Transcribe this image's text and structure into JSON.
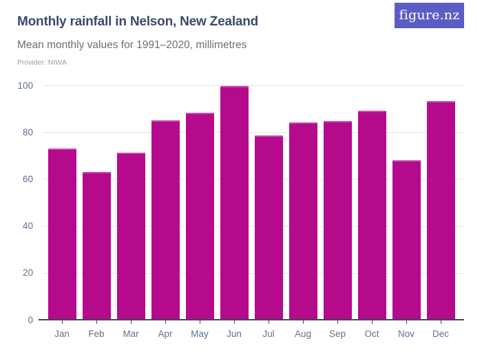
{
  "header": {
    "title": "Monthly rainfall in Nelson, New Zealand",
    "subtitle": "Mean monthly values for 1991–2020, millimetres",
    "provider": "Provider: NIWA",
    "logo_text": "figure.nz"
  },
  "colors": {
    "bar": "#b60a8c",
    "title_text": "#394a6d",
    "subtitle_text": "#6e6e6e",
    "provider_text": "#9b9b9b",
    "axis_label": "#5f7191",
    "gridline": "#e4e4e4",
    "axis_line": "#3d4757",
    "logo_background": "#5a5ec4",
    "logo_text_color": "#ffffff"
  },
  "chart_data": {
    "type": "bar",
    "title": "Monthly rainfall in Nelson, New Zealand",
    "subtitle": "Mean monthly values for 1991–2020, millimetres",
    "source": "Provider: NIWA",
    "categories": [
      "Jan",
      "Feb",
      "Mar",
      "Apr",
      "May",
      "Jun",
      "Jul",
      "Aug",
      "Sep",
      "Oct",
      "Nov",
      "Dec"
    ],
    "values": [
      73,
      63,
      71,
      85,
      88,
      99.5,
      78.5,
      84,
      84.5,
      89,
      68,
      93
    ],
    "xlabel": "",
    "ylabel": "",
    "unit": "millimetres",
    "ylim": [
      0,
      100
    ],
    "yticks": [
      0,
      20,
      40,
      60,
      80,
      100
    ],
    "grid": true,
    "legend": false,
    "bar_color": "#b60a8c"
  }
}
